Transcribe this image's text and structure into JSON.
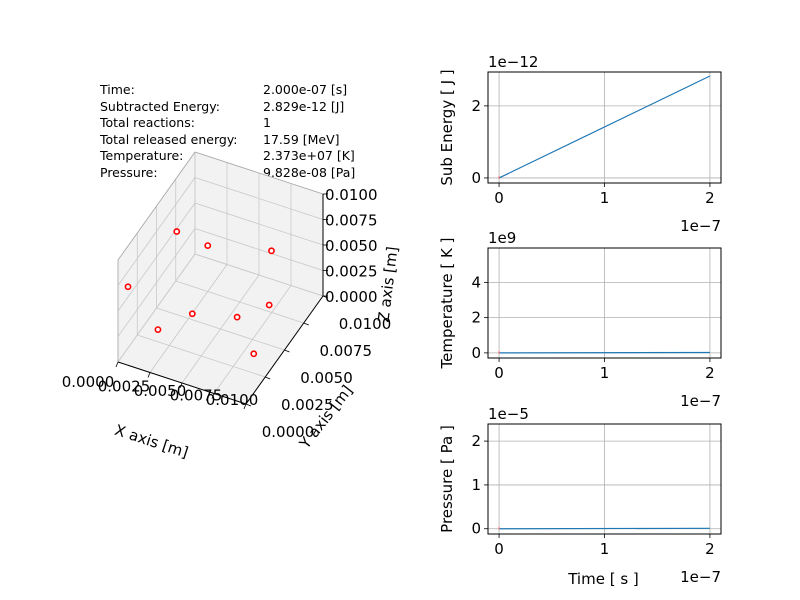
{
  "info_panel": {
    "rows": [
      {
        "label": "Time:",
        "value": "2.000e-07 [s]"
      },
      {
        "label": "Subtracted Energy:",
        "value": " 2.829e-12 [J]"
      },
      {
        "label": "Total reactions:",
        "value": " 1"
      },
      {
        "label": "Total released energy:",
        "value": " 17.59 [MeV]"
      },
      {
        "label": "Temperature:",
        "value": " 2.373e+07 [K]"
      },
      {
        "label": "Pressure:",
        "value": "9.828e-08 [Pa]"
      }
    ]
  },
  "chart_data": [
    {
      "type": "scatter3d",
      "xlabel": "X axis [m]",
      "ylabel": "Y axis [m]",
      "zlabel": "Z axis [m]",
      "xlim": [
        0,
        0.01
      ],
      "ylim": [
        0,
        0.01
      ],
      "zlim": [
        0,
        0.01
      ],
      "xticks": [
        "0.0000",
        "0.0025",
        "0.0050",
        "0.0075",
        "0.0100"
      ],
      "yticks": [
        "0.0000",
        "0.0025",
        "0.0050",
        "0.0075",
        "0.0100"
      ],
      "zticks": [
        "0.0000",
        "0.0025",
        "0.0050",
        "0.0075",
        "0.0100"
      ],
      "grid": true,
      "marker_color": "#ff0000",
      "points": [
        {
          "x": 0.0,
          "y": 0.0013,
          "z": 0.006
        },
        {
          "x": 0.003,
          "y": 0.0002,
          "z": 0.0042
        },
        {
          "x": 0.004,
          "y": 0.003,
          "z": 0.0032
        },
        {
          "x": 0.0005,
          "y": 0.0068,
          "z": 0.0058
        },
        {
          "x": 0.0025,
          "y": 0.0075,
          "z": 0.0045
        },
        {
          "x": 0.0063,
          "y": 0.005,
          "z": 0.0017
        },
        {
          "x": 0.0085,
          "y": 0.0035,
          "z": 0.0006
        },
        {
          "x": 0.007,
          "y": 0.008,
          "z": 0.0
        },
        {
          "x": 0.0076,
          "y": 0.0073,
          "z": 0.0063
        }
      ]
    },
    {
      "type": "line",
      "ylabel": "Sub Energy [ J ]",
      "xlabel": "",
      "y_offset_text": "1e−12",
      "x_offset_text": "1e−7",
      "xlim": [
        -0.105,
        2.105
      ],
      "ylim": [
        -0.14,
        2.94
      ],
      "xticks": [
        0,
        1,
        2
      ],
      "yticks": [
        0,
        2
      ],
      "grid": true,
      "series": [
        {
          "x": [
            0,
            2
          ],
          "y": [
            0,
            2.829
          ],
          "color": "#1f77b4"
        }
      ]
    },
    {
      "type": "line",
      "ylabel": "Temperature [ K ]",
      "xlabel": "",
      "y_offset_text": "1e9",
      "x_offset_text": "1e−7",
      "xlim": [
        -0.105,
        2.105
      ],
      "ylim": [
        -0.29,
        5.95
      ],
      "xticks": [
        0,
        1,
        2
      ],
      "yticks": [
        0,
        2,
        4
      ],
      "grid": true,
      "series": [
        {
          "x": [
            0,
            2
          ],
          "y": [
            0,
            0.0237
          ],
          "color": "#1f77b4"
        }
      ]
    },
    {
      "type": "line",
      "ylabel": "Pressure [ Pa ]",
      "xlabel": "Time [ s ]",
      "y_offset_text": "1e−5",
      "x_offset_text": "1e−7",
      "xlim": [
        -0.105,
        2.105
      ],
      "ylim": [
        -0.12,
        2.39
      ],
      "xticks": [
        0,
        1,
        2
      ],
      "yticks": [
        0,
        1,
        2
      ],
      "grid": true,
      "series": [
        {
          "x": [
            0,
            2
          ],
          "y": [
            0,
            0.0098
          ],
          "color": "#1f77b4"
        }
      ]
    }
  ]
}
